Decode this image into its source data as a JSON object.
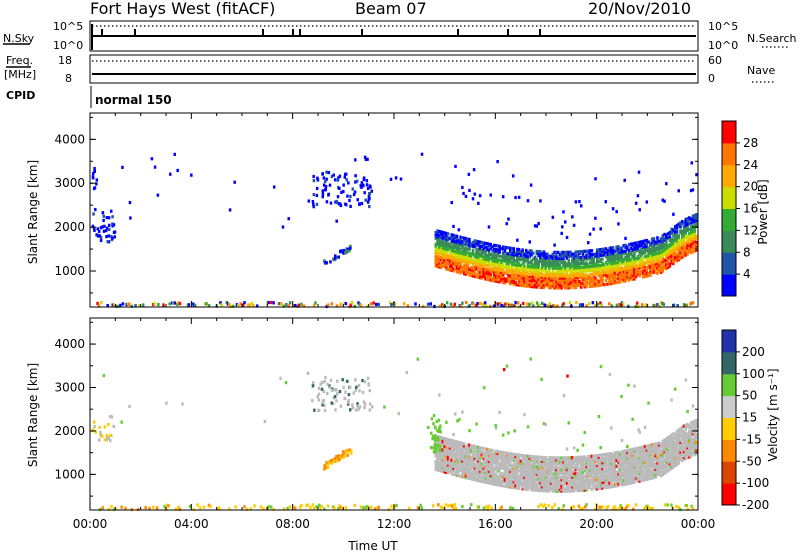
{
  "header": {
    "station": "Fort Hays West (fitACF)",
    "beam": "Beam 07",
    "date": "20/Nov/2010"
  },
  "strip_top": {
    "left_label": "N.Sky",
    "right_label": "N.Search",
    "left_ticks": [
      "10^5",
      "10^0"
    ],
    "right_ticks": [
      "10^5",
      "10^0"
    ]
  },
  "strip_freq": {
    "left_label_line1": "Freq.",
    "left_label_line2": "[MHz]",
    "right_label": "Nave",
    "left_ticks": [
      "18",
      "8"
    ],
    "right_ticks": [
      "60",
      "0"
    ]
  },
  "cpid": {
    "label": "CPID",
    "value": "normal 150"
  },
  "colors": {
    "power_scale": [
      "#0000ff",
      "#2255aa",
      "#3a8a5a",
      "#33aa33",
      "#ccdd00",
      "#ffaa00",
      "#ff7700",
      "#ff0000"
    ],
    "velocity_scale": [
      "#ff0000",
      "#dd4400",
      "#ff8800",
      "#ffcc00",
      "#cccccc",
      "#66cc33",
      "#336666",
      "#2233aa"
    ],
    "ground_scatter": "#bbbbbb"
  },
  "chart_data": [
    {
      "type": "heatmap",
      "name": "power",
      "ylabel": "Slant Range [km]",
      "ylim": [
        180,
        4600
      ],
      "xlim_hours": [
        0,
        24
      ],
      "yticks": [
        "1000",
        "2000",
        "3000",
        "4000"
      ],
      "colorbar_label": "Power [dB]",
      "colorbar_ticks": [
        "4",
        "8",
        "12",
        "16",
        "20",
        "24",
        "28"
      ],
      "colorbar_range": [
        0,
        32
      ]
    },
    {
      "type": "heatmap",
      "name": "velocity",
      "ylabel": "Slant Range [km]",
      "ylim": [
        180,
        4600
      ],
      "xlim_hours": [
        0,
        24
      ],
      "yticks": [
        "1000",
        "2000",
        "3000",
        "4000"
      ],
      "xlabel": "Time UT",
      "xticks": [
        "00:00",
        "04:00",
        "08:00",
        "12:00",
        "16:00",
        "20:00",
        "00:00"
      ],
      "colorbar_label": "Velocity [m s⁻¹]",
      "colorbar_ticks": [
        "200",
        "100",
        "50",
        "15",
        "-15",
        "-50",
        "-100",
        "-200"
      ]
    }
  ]
}
